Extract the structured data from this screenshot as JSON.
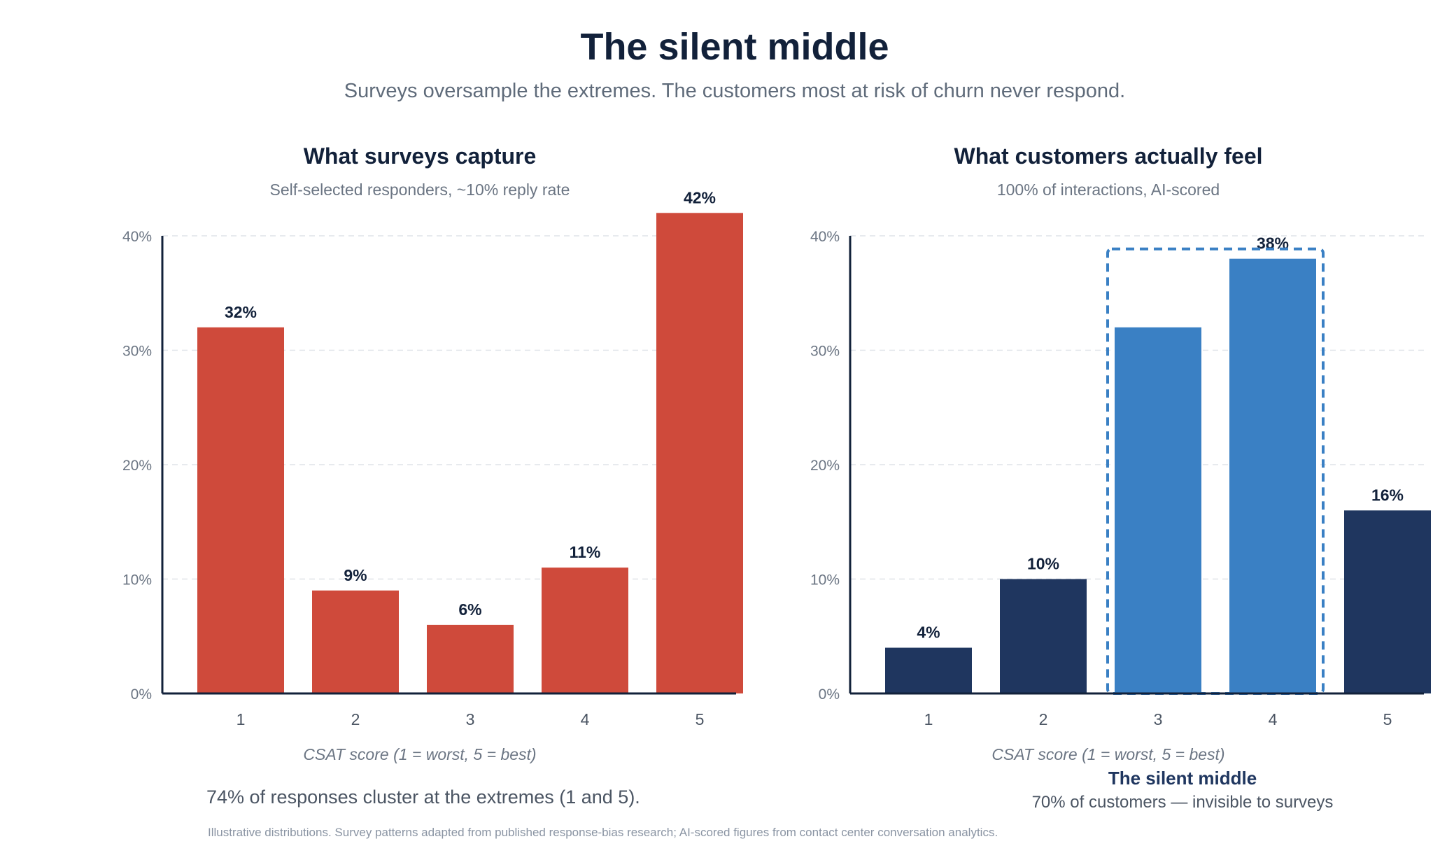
{
  "title": "The silent middle",
  "subtitle": "Surveys oversample the extremes. The customers most at risk of churn never respond.",
  "colors": {
    "survey_bar": "#cf4a3b",
    "actual_bar": "#1f365f",
    "highlight_bar": "#3a80c4",
    "axis": "#12213a",
    "grid": "#dfe3e8",
    "tick_text": "#6b7583"
  },
  "chart_data": [
    {
      "type": "bar",
      "title": "What surveys capture",
      "subtitle": "Self-selected responders, ~10% reply rate",
      "categories": [
        "1",
        "2",
        "3",
        "4",
        "5"
      ],
      "values": [
        32,
        9,
        6,
        11,
        42
      ],
      "value_labels": [
        "32%",
        "9%",
        "6%",
        "11%",
        "42%"
      ],
      "yticks": [
        "0%",
        "10%",
        "20%",
        "30%",
        "40%"
      ],
      "ylim": [
        0,
        40
      ],
      "grid": true,
      "xlabel": "CSAT score (1 = worst, 5 = best)",
      "ylabel": ""
    },
    {
      "type": "bar",
      "title": "What customers actually feel",
      "subtitle": "100% of interactions, AI-scored",
      "categories": [
        "1",
        "2",
        "3",
        "4",
        "5"
      ],
      "values": [
        4,
        10,
        32,
        38,
        16
      ],
      "value_labels": [
        "4%",
        "10%",
        "",
        "38%",
        "16%"
      ],
      "highlighted_categories": [
        "3",
        "4"
      ],
      "yticks": [
        "0%",
        "10%",
        "20%",
        "30%",
        "40%"
      ],
      "ylim": [
        0,
        40
      ],
      "grid": true,
      "xlabel": "CSAT score (1 = worst, 5 = best)",
      "ylabel": "",
      "annotation": {
        "title": "The silent middle",
        "text": "70% of customers — invisible to surveys"
      }
    }
  ],
  "takeaway": "74% of responses cluster at the extremes (1 and 5).",
  "source_note": "Illustrative distributions. Survey patterns adapted from published response-bias research; AI-scored figures from contact center conversation analytics."
}
